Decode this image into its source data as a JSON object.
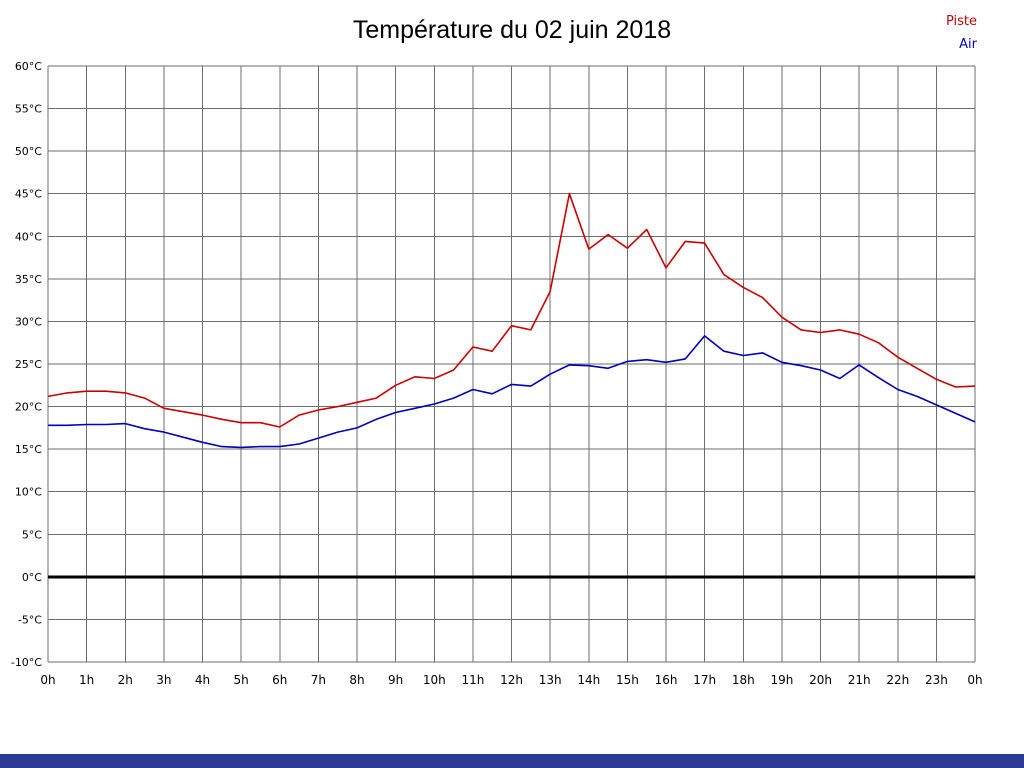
{
  "footer": {
    "color": "#2d3a96"
  },
  "legend": [
    {
      "label": "Piste",
      "color": "#cc0000"
    },
    {
      "label": "Air",
      "color": "#0000cc"
    }
  ],
  "chart_data": {
    "type": "line",
    "title": "Température du 02 juin 2018",
    "xlabel": "",
    "ylabel": "",
    "xlim": [
      0,
      24
    ],
    "ylim": [
      -10,
      60
    ],
    "grid": true,
    "grid_color": "#6e6e6e",
    "zero_line": {
      "value": 0,
      "color": "#000000",
      "width": 3
    },
    "legend_position": "top-right",
    "x_ticks": [
      0,
      1,
      2,
      3,
      4,
      5,
      6,
      7,
      8,
      9,
      10,
      11,
      12,
      13,
      14,
      15,
      16,
      17,
      18,
      19,
      20,
      21,
      22,
      23,
      24
    ],
    "x_tick_labels": [
      "0h",
      "1h",
      "2h",
      "3h",
      "4h",
      "5h",
      "6h",
      "7h",
      "8h",
      "9h",
      "10h",
      "11h",
      "12h",
      "13h",
      "14h",
      "15h",
      "16h",
      "17h",
      "18h",
      "19h",
      "20h",
      "21h",
      "22h",
      "23h",
      "0h"
    ],
    "y_ticks": [
      60,
      55,
      50,
      45,
      40,
      35,
      30,
      25,
      20,
      15,
      10,
      5,
      0,
      -5,
      -10
    ],
    "y_tick_labels": [
      "60°C",
      "55°C",
      "50°C",
      "45°C",
      "40°C",
      "35°C",
      "30°C",
      "25°C",
      "20°C",
      "15°C",
      "10°C",
      "5°C",
      "0°C",
      "-5°C",
      "-10°C"
    ],
    "x_start": 0,
    "x_interval": 0.5,
    "series": [
      {
        "name": "Piste",
        "color": "#cc0000",
        "values": [
          21.2,
          21.6,
          21.8,
          21.8,
          21.6,
          21.0,
          19.8,
          19.4,
          19.0,
          18.5,
          18.1,
          18.1,
          17.6,
          19.0,
          19.6,
          20.0,
          20.5,
          21.0,
          22.5,
          23.5,
          23.3,
          24.3,
          27.0,
          26.5,
          29.5,
          29.0,
          33.5,
          45.0,
          38.5,
          40.2,
          38.6,
          40.8,
          36.3,
          39.4,
          39.2,
          35.5,
          34.0,
          32.8,
          30.5,
          29.0,
          28.7,
          29.0,
          28.5,
          27.5,
          25.8,
          24.5,
          23.2,
          22.3,
          22.4
        ]
      },
      {
        "name": "Air",
        "color": "#0000bb",
        "values": [
          17.8,
          17.8,
          17.9,
          17.9,
          18.0,
          17.4,
          17.0,
          16.4,
          15.8,
          15.3,
          15.2,
          15.3,
          15.3,
          15.6,
          16.3,
          17.0,
          17.5,
          18.5,
          19.3,
          19.8,
          20.3,
          21.0,
          22.0,
          21.5,
          22.6,
          22.4,
          23.8,
          24.9,
          24.8,
          24.5,
          25.3,
          25.5,
          25.2,
          25.6,
          28.3,
          26.5,
          26.0,
          26.3,
          25.2,
          24.8,
          24.3,
          23.3,
          24.9,
          23.4,
          22.0,
          21.2,
          20.2,
          19.2,
          18.2
        ]
      }
    ]
  }
}
